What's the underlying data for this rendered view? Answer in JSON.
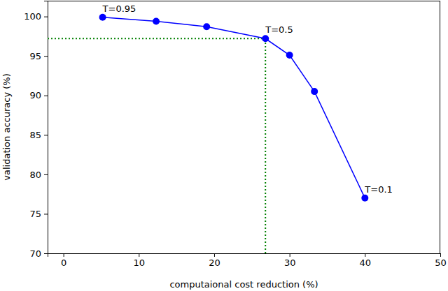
{
  "chart_data": {
    "type": "line",
    "x_label": "computaional cost reduction (%)",
    "y_label": "validation accuracy (%)",
    "x": [
      5.2,
      12.3,
      19.0,
      26.8,
      30.0,
      33.3,
      40.0
    ],
    "values": [
      99.9,
      99.4,
      98.7,
      97.2,
      95.1,
      90.5,
      77.0
    ],
    "point_labels": [
      "T=0.95",
      null,
      null,
      "T=0.5",
      null,
      null,
      "T=0.1"
    ],
    "color": "#0000ff",
    "marker": "circle",
    "xlim": [
      -2.1,
      50
    ],
    "xticks": [
      0,
      10,
      20,
      30,
      40,
      50
    ],
    "ylim": [
      70,
      102
    ],
    "yticks": [
      70,
      75,
      80,
      85,
      90,
      95,
      100
    ],
    "grid": false,
    "highlight": {
      "x": 26.8,
      "y": 97.2,
      "color": "#008000",
      "line_style": "dotted"
    }
  }
}
